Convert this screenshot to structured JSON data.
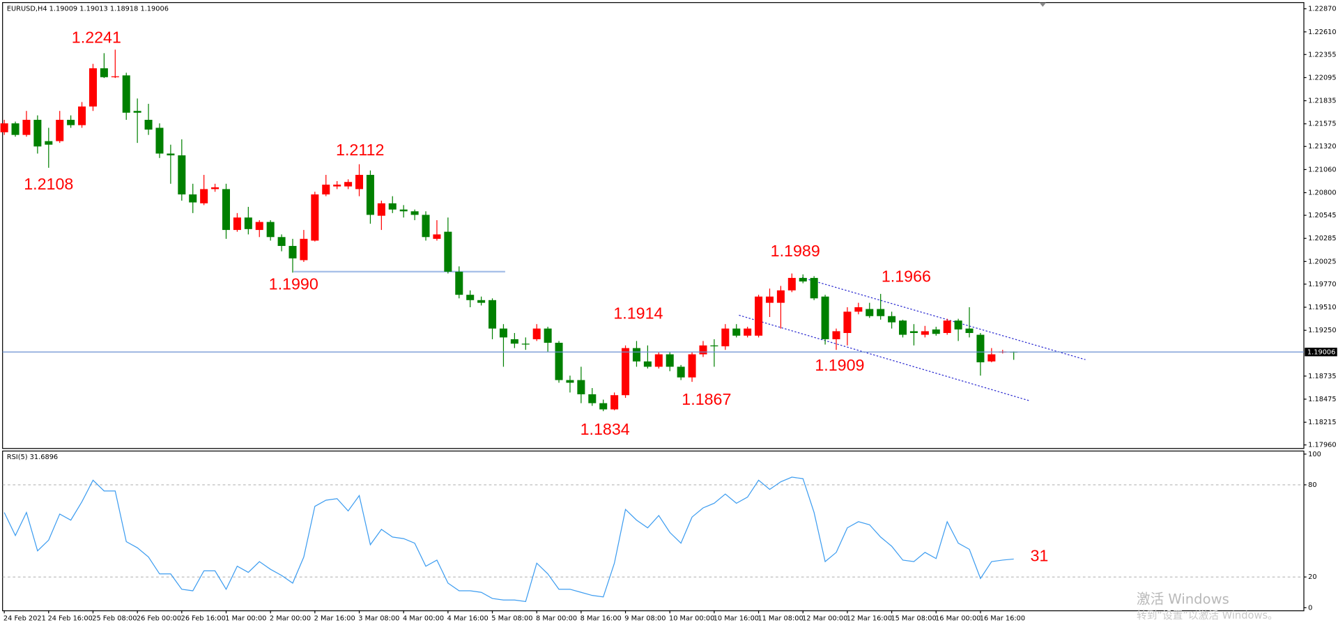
{
  "chart_data": [
    {
      "type": "candlestick",
      "title": "EURUSD,H4  1.19009 1.19013 1.18918 1.19006",
      "categories": [
        "24 Feb 2021",
        null,
        null,
        null,
        "24 Feb 16:00",
        null,
        null,
        null,
        "25 Feb 08:00",
        null,
        null,
        null,
        "26 Feb 00:00",
        null,
        null,
        null,
        "26 Feb 16:00",
        null,
        null,
        null,
        "1 Mar 00:00",
        null,
        null,
        null,
        "2 Mar 00:00",
        null,
        null,
        null,
        "2 Mar 16:00",
        null,
        null,
        null,
        "3 Mar 08:00",
        null,
        null,
        null,
        "4 Mar 00:00",
        null,
        null,
        null,
        "4 Mar 16:00",
        null,
        null,
        null,
        "5 Mar 08:00",
        null,
        null,
        null,
        "8 Mar 00:00",
        null,
        null,
        null,
        "8 Mar 16:00",
        null,
        null,
        null,
        "9 Mar 08:00",
        null,
        null,
        null,
        "10 Mar 00:00",
        null,
        null,
        null,
        "10 Mar 16:00",
        null,
        null,
        null,
        "11 Mar 08:00",
        null,
        null,
        null,
        "12 Mar 00:00",
        null,
        null,
        null,
        "12 Mar 16:00",
        null,
        null,
        null,
        "15 Mar 08:00",
        null,
        null,
        null,
        "16 Mar 00:00",
        null,
        null,
        null,
        "16 Mar 16:00",
        null,
        null,
        null
      ],
      "open": [
        1.2148,
        1.2158,
        1.2145,
        1.2162,
        1.2138,
        1.2138,
        1.2162,
        1.2156,
        1.2177,
        1.222,
        1.221,
        1.2212,
        1.2172,
        1.2162,
        1.2153,
        1.2124,
        1.2122,
        1.2078,
        1.2068,
        1.2084,
        1.2084,
        1.2038,
        1.2052,
        1.2038,
        1.2047,
        1.203,
        1.202,
        1.2004,
        1.2026,
        1.2078,
        1.2087,
        1.2087,
        1.2084,
        1.21,
        1.2054,
        1.2068,
        1.2061,
        1.2059,
        1.2055,
        1.2028,
        1.2036,
        1.1991,
        1.1965,
        1.1959,
        1.1959,
        1.1927,
        1.1915,
        1.191,
        1.1915,
        1.1927,
        1.1911,
        1.1869,
        1.1869,
        1.1853,
        1.1843,
        1.1836,
        1.1852,
        1.1905,
        1.189,
        1.1884,
        1.1898,
        1.1884,
        1.1872,
        1.1898,
        1.1908,
        1.1907,
        1.1927,
        1.1919,
        1.1919,
        1.1956,
        1.1956,
        1.197,
        1.1984,
        1.1984,
        1.1963,
        1.1915,
        1.1922,
        1.1946,
        1.1949,
        1.1949,
        1.1941,
        1.1936,
        1.1924,
        1.192,
        1.1926,
        1.1922,
        1.1936,
        1.1927,
        1.192,
        1.189,
        1.19,
        1.19009
      ],
      "high": [
        1.2162,
        1.216,
        1.2172,
        1.2167,
        1.2153,
        1.2172,
        1.2167,
        1.2182,
        1.2225,
        1.2237,
        1.2241,
        1.2215,
        1.2186,
        1.218,
        1.2158,
        1.2134,
        1.214,
        1.209,
        1.21,
        1.209,
        1.209,
        1.2057,
        1.2064,
        1.2049,
        1.2049,
        1.2033,
        1.2028,
        1.2038,
        1.2081,
        1.21,
        1.2093,
        1.2095,
        1.2112,
        1.2105,
        1.2071,
        1.2076,
        1.2066,
        1.2061,
        1.2059,
        1.2049,
        1.2052,
        1.1997,
        1.197,
        1.1963,
        1.1961,
        1.1932,
        1.1922,
        1.1917,
        1.1932,
        1.1929,
        1.1913,
        1.1874,
        1.1884,
        1.186,
        1.1847,
        1.1855,
        1.1908,
        1.1913,
        1.1908,
        1.19,
        1.1901,
        1.1886,
        1.19,
        1.1913,
        1.1915,
        1.1932,
        1.1932,
        1.1929,
        1.1965,
        1.1972,
        1.1975,
        1.1989,
        1.1988,
        1.1986,
        1.1965,
        1.1927,
        1.1951,
        1.1956,
        1.1956,
        1.1966,
        1.1946,
        1.1937,
        1.1932,
        1.193,
        1.1929,
        1.1938,
        1.1938,
        1.1951,
        1.1922,
        1.1905,
        1.1903,
        1.19013
      ],
      "low": [
        1.2145,
        1.2143,
        1.2143,
        1.2124,
        1.2108,
        1.2136,
        1.2153,
        1.2153,
        1.2172,
        1.2209,
        1.2209,
        1.2162,
        1.2136,
        1.2145,
        1.2119,
        1.209,
        1.2071,
        1.2057,
        1.2066,
        1.2081,
        1.2028,
        1.2036,
        1.2033,
        1.203,
        1.2026,
        1.2014,
        1.199,
        1.2002,
        1.2025,
        1.2076,
        1.2084,
        1.2084,
        1.2076,
        1.2045,
        1.2038,
        1.2057,
        1.2052,
        1.2049,
        1.2026,
        1.2026,
        1.1989,
        1.1961,
        1.1951,
        1.1953,
        1.1915,
        1.1884,
        1.1905,
        1.1903,
        1.1913,
        1.1901,
        1.1866,
        1.1855,
        1.1843,
        1.184,
        1.1834,
        1.1835,
        1.1849,
        1.1884,
        1.1882,
        1.1882,
        1.1879,
        1.1869,
        1.1867,
        1.1895,
        1.1884,
        1.1903,
        1.1917,
        1.1917,
        1.1917,
        1.194,
        1.1927,
        1.1968,
        1.1978,
        1.1959,
        1.1909,
        1.1903,
        1.1908,
        1.1943,
        1.1939,
        1.1937,
        1.1927,
        1.1917,
        1.1908,
        1.1917,
        1.1919,
        1.192,
        1.1913,
        1.1917,
        1.1874,
        1.1889,
        1.1899,
        1.18918
      ],
      "close": [
        1.2158,
        1.2145,
        1.2162,
        1.2132,
        1.2134,
        1.2162,
        1.2156,
        1.2177,
        1.222,
        1.221,
        1.2211,
        1.217,
        1.217,
        1.2151,
        1.2124,
        1.2122,
        1.2078,
        1.2069,
        1.2084,
        1.2086,
        1.2038,
        1.2052,
        1.2039,
        1.2047,
        1.203,
        1.202,
        1.2006,
        1.2028,
        1.2078,
        1.2089,
        1.2089,
        1.2092,
        1.21,
        1.2055,
        1.2068,
        1.2061,
        1.2059,
        1.2055,
        1.203,
        1.2033,
        1.1991,
        1.1965,
        1.1959,
        1.1956,
        1.1927,
        1.1917,
        1.191,
        1.1909,
        1.1927,
        1.1911,
        1.1869,
        1.1866,
        1.1853,
        1.1843,
        1.1836,
        1.1852,
        1.1905,
        1.189,
        1.1884,
        1.1898,
        1.1884,
        1.1872,
        1.1898,
        1.1908,
        1.1907,
        1.1927,
        1.1919,
        1.1927,
        1.1963,
        1.1963,
        1.197,
        1.1984,
        1.198,
        1.1961,
        1.1915,
        1.1924,
        1.1946,
        1.1951,
        1.1941,
        1.1941,
        1.1934,
        1.192,
        1.1922,
        1.1924,
        1.1921,
        1.1936,
        1.1926,
        1.1922,
        1.1889,
        1.1898,
        1.1901,
        1.19006
      ],
      "up_color": "#ff0000",
      "down_color": "#008000",
      "ylim": [
        1.1792,
        1.2294
      ],
      "yticks": [
        {
          "value": 1.2287,
          "label": "1.22870"
        },
        {
          "value": 1.2261,
          "label": "1.22610"
        },
        1.22355,
        1.22095,
        1.21835,
        1.21575,
        {
          "value": 1.2132,
          "label": "1.21320"
        },
        {
          "value": 1.2106,
          "label": "1.21060"
        },
        {
          "value": 1.208,
          "label": "1.20800"
        },
        1.20545,
        1.20285,
        1.20025,
        {
          "value": 1.1977,
          "label": "1.19770"
        },
        {
          "value": 1.1951,
          "label": "1.19510"
        },
        {
          "value": 1.1925,
          "label": "1.19250"
        },
        1.18735,
        1.18475,
        1.18215,
        {
          "value": 1.1796,
          "label": "1.17960"
        }
      ],
      "last_price": 1.19006,
      "last_price_color": "#6a8fd0",
      "annotations": [
        "1.2241",
        "1.2108",
        "1.2112",
        "1.1990",
        "1.1914",
        "1.1834",
        "1.1867",
        "1.1989",
        "1.1909",
        "1.1966"
      ]
    },
    {
      "type": "line",
      "title": "RSI(5) 31.6896",
      "color": "#3c9cf0",
      "values": [
        62,
        47,
        62,
        37,
        44,
        61,
        57,
        69,
        83,
        76,
        76,
        43,
        39,
        33,
        22,
        22,
        12,
        11,
        24,
        24,
        12,
        27,
        23,
        30,
        25,
        21,
        16,
        33,
        66,
        70,
        71,
        63,
        73,
        41,
        51,
        46,
        45,
        42,
        27,
        31,
        16,
        11,
        11,
        10,
        6,
        5,
        5,
        4,
        29,
        22,
        12,
        12,
        10,
        8,
        7,
        29,
        64,
        57,
        52,
        60,
        49,
        42,
        59,
        65,
        68,
        74,
        68,
        72,
        83,
        77,
        82,
        85,
        84,
        62,
        30,
        36,
        52,
        56,
        54,
        46,
        40,
        31,
        30,
        36,
        32,
        56,
        42,
        38,
        19,
        30,
        31,
        31.6896
      ],
      "ylim": [
        -2,
        102
      ],
      "yticks": [
        0,
        20,
        80,
        100
      ],
      "grid": true,
      "annotations": [
        "31"
      ]
    }
  ],
  "watermark": {
    "title": "激活 Windows",
    "subtitle": "转到“设置”以激活 Windows。"
  }
}
